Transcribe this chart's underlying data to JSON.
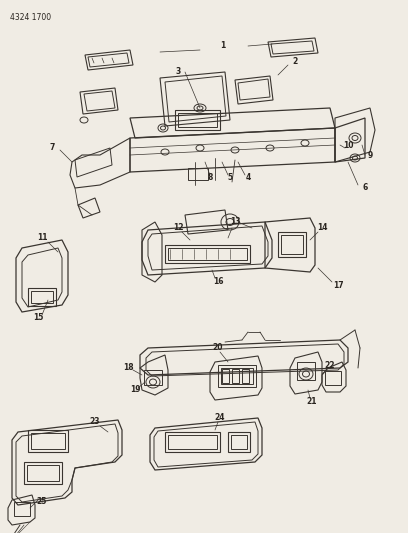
{
  "title": "4324 1700",
  "bg_color": "#f0ece4",
  "line_color": "#3a3530",
  "text_color": "#2a2520",
  "fig_width": 4.08,
  "fig_height": 5.33,
  "dpi": 100,
  "lw": 0.7
}
